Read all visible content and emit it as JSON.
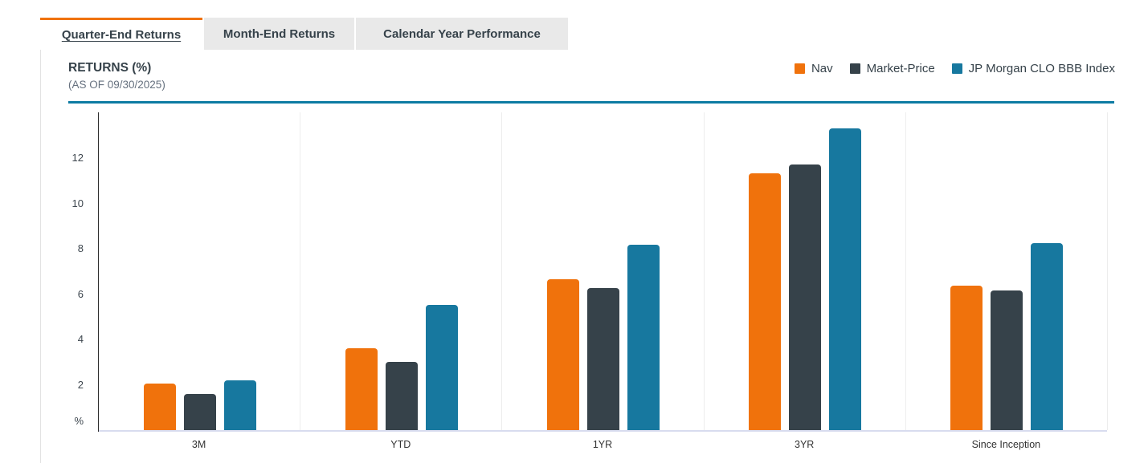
{
  "tabs": [
    {
      "label": "Quarter-End Returns",
      "active": true
    },
    {
      "label": "Month-End Returns",
      "active": false
    },
    {
      "label": "Calendar Year Performance",
      "active": false
    }
  ],
  "header": {
    "title": "RETURNS (%)",
    "subtitle": "(AS OF 09/30/2025)"
  },
  "colors": {
    "accent_orange": "#f0720c",
    "slate": "#36424a",
    "teal": "#17789f",
    "divider_teal": "#0d7ba3"
  },
  "chart_data": {
    "type": "bar",
    "title": "RETURNS (%)",
    "subtitle": "(AS OF 09/30/2025)",
    "categories": [
      "3M",
      "YTD",
      "1YR",
      "3YR",
      "Since Inception"
    ],
    "series": [
      {
        "name": "Nav",
        "color": "#f0720c",
        "values": [
          2.05,
          3.6,
          6.65,
          11.3,
          6.35
        ]
      },
      {
        "name": "Market-Price",
        "color": "#36424a",
        "values": [
          1.6,
          3.0,
          6.25,
          11.7,
          6.15
        ]
      },
      {
        "name": "JP Morgan CLO BBB Index",
        "color": "#17789f",
        "values": [
          2.2,
          5.5,
          8.15,
          13.3,
          8.25
        ]
      }
    ],
    "yticks": [
      2,
      4,
      6,
      8,
      10,
      12
    ],
    "ylabel_unit": "%",
    "ylim": [
      0,
      14
    ],
    "grid": "vertical-category-separators-only",
    "legend_position": "top-right"
  }
}
